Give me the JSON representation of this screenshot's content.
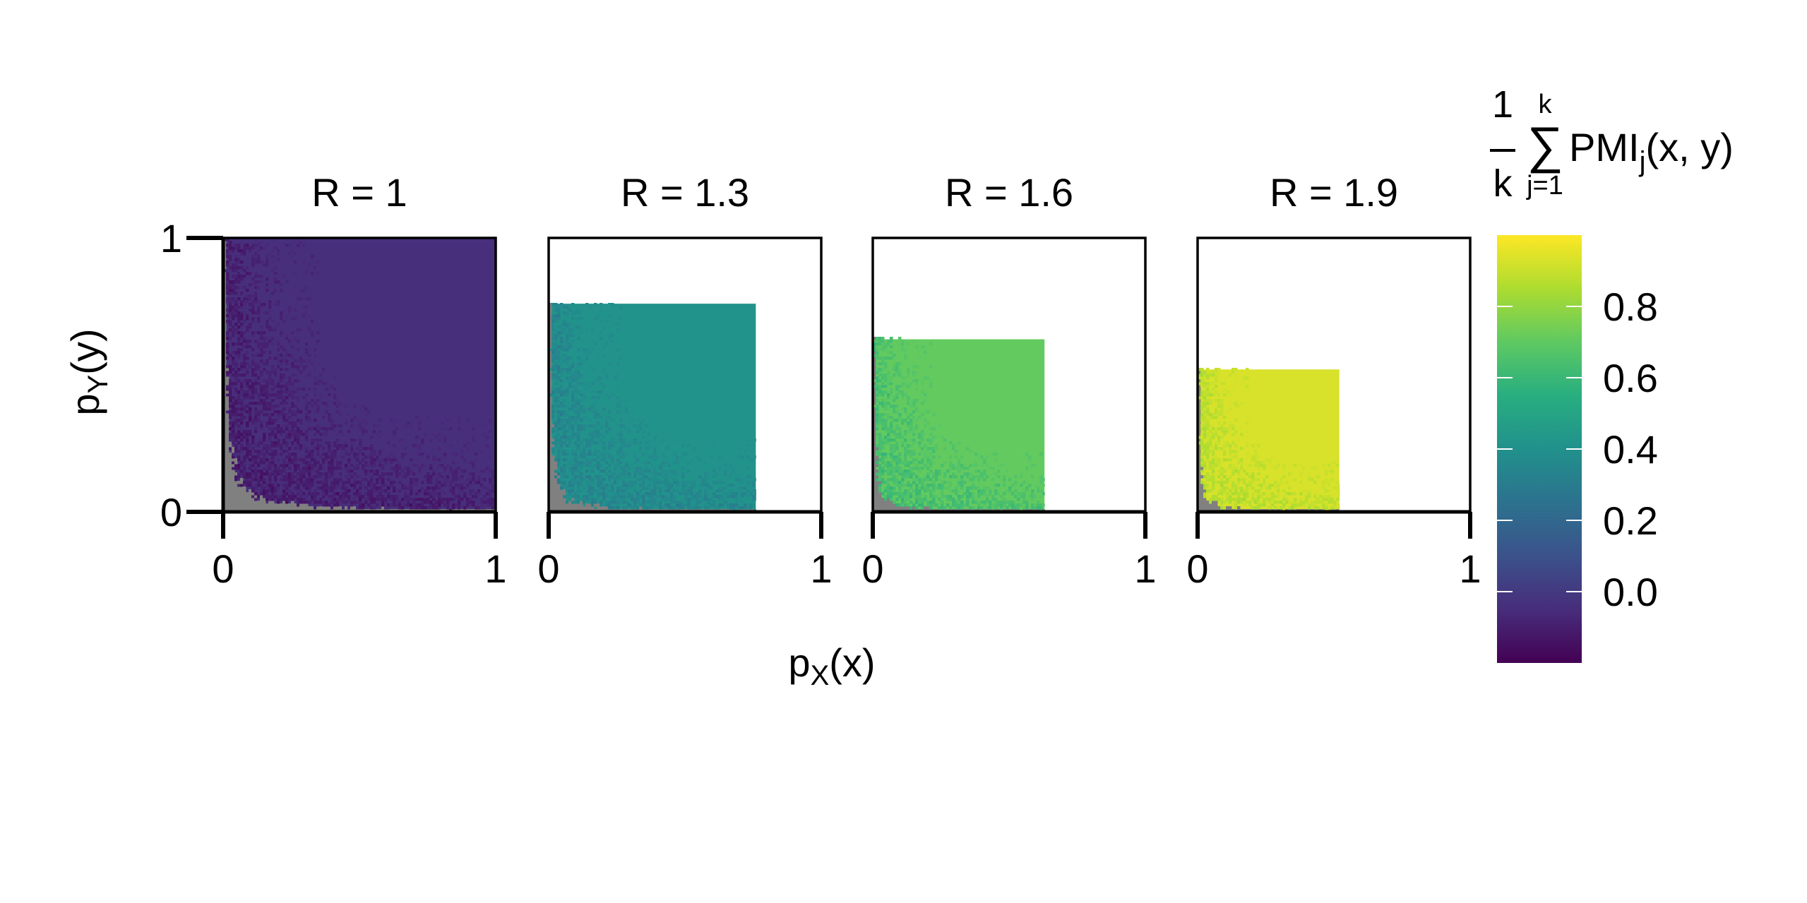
{
  "chart_data": {
    "type": "heatmap",
    "xlabel": {
      "main": "p",
      "sub": "X",
      "tail": "(x)"
    },
    "ylabel": {
      "main": "p",
      "sub": "Y",
      "tail": "(y)"
    },
    "xlim": [
      0,
      1
    ],
    "ylim": [
      0,
      1
    ],
    "x_ticks": [
      "0",
      "1"
    ],
    "y_ticks": [
      "0",
      "1"
    ],
    "panels": [
      {
        "title": "R = 1",
        "extent": [
          0,
          1,
          0,
          1
        ],
        "value": -0.04,
        "edge_fill": -0.12
      },
      {
        "title": "R = 1.3",
        "extent": [
          0,
          0.76,
          0,
          0.76
        ],
        "value": 0.41,
        "edge_fill": 0.33
      },
      {
        "title": "R = 1.6",
        "extent": [
          0,
          0.63,
          0,
          0.63
        ],
        "value": 0.71,
        "edge_fill": 0.62
      },
      {
        "title": "R = 1.9",
        "extent": [
          0,
          0.52,
          0,
          0.52
        ],
        "value": 0.93,
        "edge_fill": 0.86
      }
    ],
    "masked_color": "#808080",
    "legend": {
      "position": "right",
      "title": {
        "frac_num": "1",
        "frac_den": "k",
        "sum_upper": "k",
        "sum_lower": "j=1",
        "term": "PMI",
        "term_sub": "j",
        "term_tail": "(x, y)"
      },
      "range": [
        -0.2,
        1.0
      ],
      "ticks": [
        {
          "value": 0.0,
          "label": "0.0"
        },
        {
          "value": 0.2,
          "label": "0.2"
        },
        {
          "value": 0.4,
          "label": "0.4"
        },
        {
          "value": 0.6,
          "label": "0.6"
        },
        {
          "value": 0.8,
          "label": "0.8"
        }
      ],
      "colormap": "viridis"
    },
    "grid": false
  }
}
